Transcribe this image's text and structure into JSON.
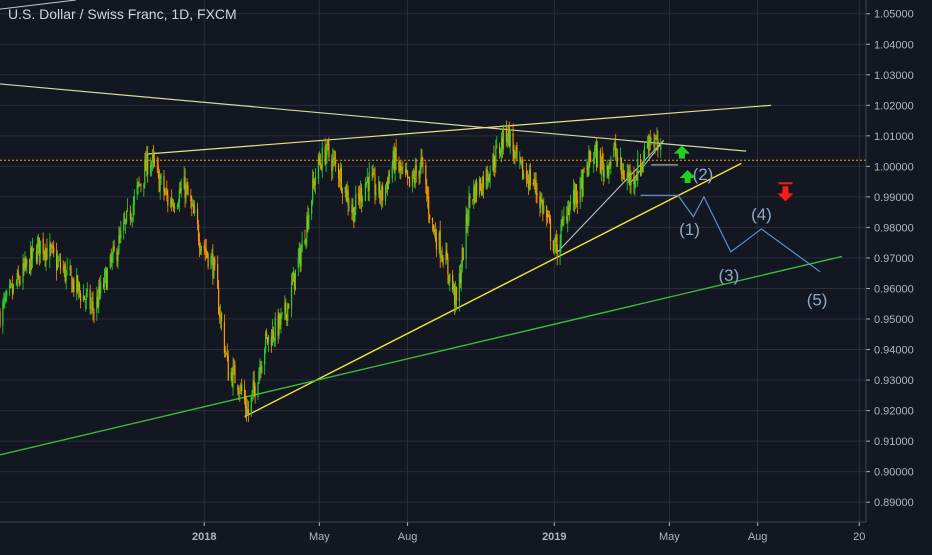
{
  "chart_data": {
    "type": "candlestick",
    "title": "U.S. Dollar / Swiss Franc, 1D, FXCM",
    "colors": {
      "background": "#131722",
      "grid": "#2a2e39",
      "up_candle": "#2fd12f",
      "down_candle": "#ff9800",
      "axis_text": "#b2b5be",
      "dotted_level": "#ff9800",
      "resistance_line": "#d7d7a0",
      "channel_line": "#e6e38a",
      "support_line_yellow": "#f2e33a",
      "support_line_green": "#3cb83c",
      "wedge_line": "#c8c8c8",
      "projection": "#5b8fd1",
      "wave_label": "#8ea9c7",
      "arrow_up": "#22d01f",
      "arrow_down": "#ff1a1a"
    },
    "ylim": [
      0.8835,
      1.0545
    ],
    "y_ticks": [
      "1.05000",
      "1.04000",
      "1.03000",
      "1.02000",
      "1.01000",
      "1.00000",
      "0.99000",
      "0.98000",
      "0.97000",
      "0.96000",
      "0.95000",
      "0.94000",
      "0.93000",
      "0.92000",
      "0.91000",
      "0.90000",
      "0.89000"
    ],
    "x_ticks": [
      {
        "label": "2018",
        "date": "2018-01-01",
        "bold": true
      },
      {
        "label": "May",
        "date": "2018-05-01",
        "bold": false
      },
      {
        "label": "Aug",
        "date": "2018-08-01",
        "bold": false
      },
      {
        "label": "2019",
        "date": "2019-01-01",
        "bold": true
      },
      {
        "label": "May",
        "date": "2019-05-01",
        "bold": false
      },
      {
        "label": "Aug",
        "date": "2019-08-01",
        "bold": false
      },
      {
        "label": "20",
        "date": "2019-11-15",
        "bold": false
      }
    ],
    "xlim": [
      "2017-06-02",
      "2019-11-22"
    ],
    "price_anchors": [
      [
        "2017-06-02",
        0.952
      ],
      [
        "2017-07-15",
        0.975
      ],
      [
        "2017-09-08",
        0.953
      ],
      [
        "2017-10-08",
        0.978
      ],
      [
        "2017-11-05",
        1.003
      ],
      [
        "2017-11-25",
        0.988
      ],
      [
        "2017-12-12",
        0.993
      ],
      [
        "2017-12-28",
        0.976
      ],
      [
        "2018-01-10",
        0.968
      ],
      [
        "2018-01-26",
        0.933
      ],
      [
        "2018-02-05",
        0.93
      ],
      [
        "2018-02-16",
        0.919
      ],
      [
        "2018-03-05",
        0.942
      ],
      [
        "2018-03-25",
        0.95
      ],
      [
        "2018-04-12",
        0.972
      ],
      [
        "2018-04-28",
        0.999
      ],
      [
        "2018-05-08",
        1.005
      ],
      [
        "2018-05-22",
        0.998
      ],
      [
        "2018-06-05",
        0.985
      ],
      [
        "2018-06-20",
        0.996
      ],
      [
        "2018-07-05",
        0.99
      ],
      [
        "2018-07-18",
        1.002
      ],
      [
        "2018-08-03",
        0.993
      ],
      [
        "2018-08-15",
        1.001
      ],
      [
        "2018-08-27",
        0.98
      ],
      [
        "2018-09-08",
        0.971
      ],
      [
        "2018-09-21",
        0.955
      ],
      [
        "2018-10-05",
        0.99
      ],
      [
        "2018-10-20",
        0.996
      ],
      [
        "2018-11-05",
        1.006
      ],
      [
        "2018-11-13",
        1.012
      ],
      [
        "2018-11-25",
        0.999
      ],
      [
        "2018-12-10",
        0.995
      ],
      [
        "2018-12-22",
        0.985
      ],
      [
        "2019-01-03",
        0.972
      ],
      [
        "2019-01-15",
        0.987
      ],
      [
        "2019-01-28",
        0.992
      ],
      [
        "2019-02-10",
        1.005
      ],
      [
        "2019-02-22",
        0.999
      ],
      [
        "2019-03-05",
        1.005
      ],
      [
        "2019-03-12",
        0.998
      ],
      [
        "2019-03-22",
        0.996
      ],
      [
        "2019-04-01",
        1.0
      ],
      [
        "2019-04-10",
        1.01
      ],
      [
        "2019-04-16",
        1.008
      ],
      [
        "2019-04-22",
        1.003
      ]
    ],
    "dotted_level": 1.002,
    "lines": [
      {
        "name": "resistance-line",
        "from": [
          "2017-06-02",
          1.027
        ],
        "to": [
          "2019-07-20",
          1.005
        ],
        "colorKey": "resistance_line",
        "width": 1.2
      },
      {
        "name": "upper-channel-line",
        "from": [
          "2017-11-01",
          1.004
        ],
        "to": [
          "2019-08-15",
          1.02
        ],
        "colorKey": "channel_line",
        "width": 1.2
      },
      {
        "name": "top-left-fragment-line",
        "from": [
          "2017-06-02",
          1.0515
        ],
        "to": [
          "2017-08-20",
          1.0545
        ],
        "colorKey": "wedge_line",
        "width": 1.0
      },
      {
        "name": "support-line-yellow",
        "from": [
          "2018-02-12",
          0.918
        ],
        "to": [
          "2019-07-15",
          1.001
        ],
        "colorKey": "support_line_yellow",
        "width": 1.4
      },
      {
        "name": "support-line-green",
        "from": [
          "2017-06-02",
          0.9055
        ],
        "to": [
          "2019-10-28",
          0.9705
        ],
        "colorKey": "support_line_green",
        "width": 1.4
      },
      {
        "name": "wedge-lower-line",
        "from": [
          "2019-01-03",
          0.9715
        ],
        "to": [
          "2019-04-25",
          1.0085
        ],
        "colorKey": "wedge_line",
        "width": 1.0
      },
      {
        "name": "wedge-rising-line",
        "from": [
          "2019-03-20",
          0.994
        ],
        "to": [
          "2019-04-25",
          1.0085
        ],
        "colorKey": "wedge_line",
        "width": 1.0
      },
      {
        "name": "short-horizontal-line",
        "from": [
          "2019-04-12",
          1.0005
        ],
        "to": [
          "2019-05-10",
          1.0005
        ],
        "colorKey": "wedge_line",
        "width": 1.0
      }
    ],
    "projection_path": [
      [
        "2019-04-01",
        0.9905
      ],
      [
        "2019-05-10",
        0.9905
      ],
      [
        "2019-05-26",
        0.9835
      ],
      [
        "2019-06-06",
        0.99
      ],
      [
        "2019-07-04",
        0.972
      ],
      [
        "2019-08-05",
        0.9795
      ],
      [
        "2019-10-05",
        0.9655
      ]
    ],
    "wave_labels": [
      {
        "text": "(1)",
        "date": "2019-05-22",
        "price": 0.9775
      },
      {
        "text": "(2)",
        "date": "2019-06-05",
        "price": 0.9955
      },
      {
        "text": "(3)",
        "date": "2019-07-02",
        "price": 0.9625
      },
      {
        "text": "(4)",
        "date": "2019-08-05",
        "price": 0.9825
      },
      {
        "text": "(5)",
        "date": "2019-10-02",
        "price": 0.9545
      }
    ],
    "arrows": [
      {
        "name": "green-up-arrow-1",
        "date": "2019-05-14",
        "price": 1.0045,
        "dir": "up",
        "colorKey": "arrow_up"
      },
      {
        "name": "green-up-arrow-2",
        "date": "2019-05-20",
        "price": 0.9965,
        "dir": "up",
        "colorKey": "arrow_up"
      },
      {
        "name": "red-down-arrow",
        "date": "2019-08-30",
        "price": 0.9915,
        "dir": "down",
        "colorKey": "arrow_down"
      }
    ]
  }
}
